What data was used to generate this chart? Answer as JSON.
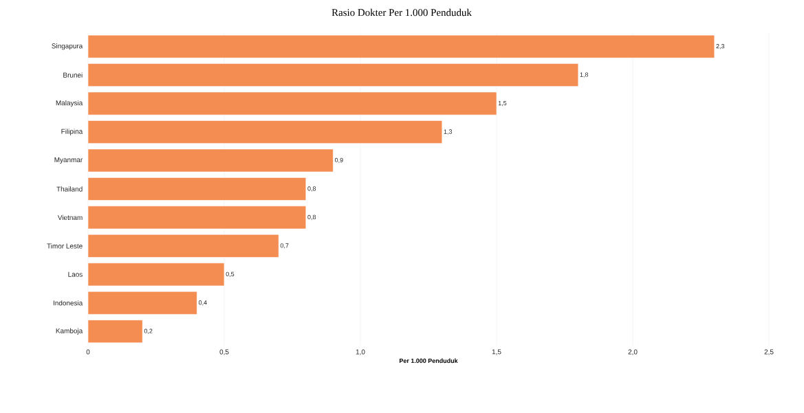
{
  "chart_data": {
    "type": "bar",
    "orientation": "horizontal",
    "title": "Rasio Dokter Per 1.000 Penduduk",
    "xlabel": "Per 1.000 Penduduk",
    "categories": [
      "Singapura",
      "Brunei",
      "Malaysia",
      "Filipina",
      "Myanmar",
      "Thailand",
      "Vietnam",
      "Timor Leste",
      "Laos",
      "Indonesia",
      "Kamboja"
    ],
    "values": [
      2.3,
      1.8,
      1.5,
      1.3,
      0.9,
      0.8,
      0.8,
      0.7,
      0.5,
      0.4,
      0.2
    ],
    "value_labels": [
      "2,3",
      "1,8",
      "1,5",
      "1,3",
      "0,9",
      "0,8",
      "0,8",
      "0,7",
      "0,5",
      "0,4",
      "0,2"
    ],
    "color": "#f48d51",
    "xlim": [
      0,
      2.5
    ],
    "xticks": [
      0,
      {
        "value": 0.5,
        "label": "0,5"
      },
      {
        "value": 1.0,
        "label": "1,0"
      },
      {
        "value": 1.5,
        "label": "1,5"
      },
      {
        "value": 2.0,
        "label": "2,0"
      },
      {
        "value": 2.5,
        "label": "2,5"
      }
    ],
    "grid": "x"
  }
}
